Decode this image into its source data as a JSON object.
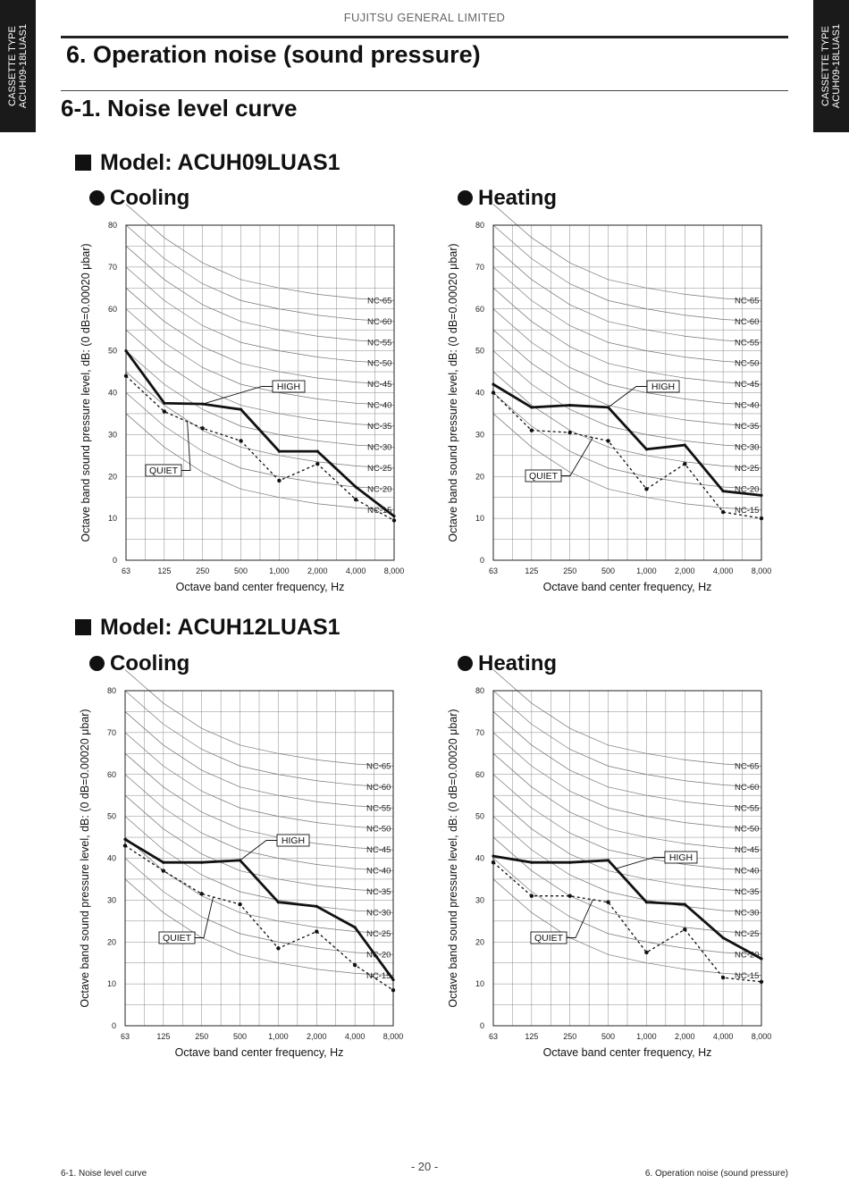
{
  "side_tab": {
    "line1": "CASSETTE TYPE",
    "line2": "ACUH09-18LUAS1"
  },
  "header": {
    "company": "FUJITSU GENERAL LIMITED"
  },
  "title": "6. Operation noise (sound pressure)",
  "subtitle": "6-1. Noise level curve",
  "footer": {
    "left": "6-1. Noise level curve",
    "center": "- 20 -",
    "right": "6. Operation noise (sound pressure)"
  },
  "colors": {
    "high_line": "#111111",
    "quiet_line": "#111111",
    "grid": "#888888",
    "nc_curve": "#777777"
  },
  "models": [
    {
      "label": "Model: ACUH09LUAS1"
    },
    {
      "label": "Model: ACUH12LUAS1"
    }
  ],
  "chart_data": [
    {
      "type": "line",
      "model": "Model: ACUH09LUAS1",
      "mode": "Cooling",
      "xlabel": "Octave band center frequency, Hz",
      "ylabel": "Octave band sound pressure level, dB: (0 dB=0.00020 μbar)",
      "categories": [
        "63",
        "125",
        "250",
        "500",
        "1,000",
        "2,000",
        "4,000",
        "8,000"
      ],
      "ylim": [
        0,
        80
      ],
      "yticks": [
        0,
        10,
        20,
        30,
        40,
        50,
        60,
        70,
        80
      ],
      "nc_labels": [
        "NC-65",
        "NC-60",
        "NC-55",
        "NC-50",
        "NC-45",
        "NC-40",
        "NC-35",
        "NC-30",
        "NC-25",
        "NC-20",
        "NC-15"
      ],
      "series": [
        {
          "name": "HIGH",
          "values": [
            50,
            37.5,
            37.3,
            36,
            26,
            26,
            17.5,
            10.5
          ]
        },
        {
          "name": "QUIET",
          "values": [
            44,
            35.5,
            31.5,
            28.5,
            19,
            23,
            14.5,
            9.5
          ]
        }
      ]
    },
    {
      "type": "line",
      "model": "Model: ACUH09LUAS1",
      "mode": "Heating",
      "xlabel": "Octave band center frequency, Hz",
      "ylabel": "Octave band sound pressure level, dB: (0 dB=0.00020 μbar)",
      "categories": [
        "63",
        "125",
        "250",
        "500",
        "1,000",
        "2,000",
        "4,000",
        "8,000"
      ],
      "ylim": [
        0,
        80
      ],
      "yticks": [
        0,
        10,
        20,
        30,
        40,
        50,
        60,
        70,
        80
      ],
      "nc_labels": [
        "NC-65",
        "NC-60",
        "NC-55",
        "NC-50",
        "NC-45",
        "NC-40",
        "NC-35",
        "NC-30",
        "NC-25",
        "NC-20",
        "NC-15"
      ],
      "series": [
        {
          "name": "HIGH",
          "values": [
            42,
            36.5,
            37,
            36.5,
            26.5,
            27.5,
            16.5,
            15.5
          ]
        },
        {
          "name": "QUIET",
          "values": [
            40,
            31,
            30.5,
            28.5,
            17,
            23,
            11.5,
            10
          ]
        }
      ]
    },
    {
      "type": "line",
      "model": "Model: ACUH12LUAS1",
      "mode": "Cooling",
      "xlabel": "Octave band center frequency, Hz",
      "ylabel": "Octave band sound pressure level, dB: (0 dB=0.00020 μbar)",
      "categories": [
        "63",
        "125",
        "250",
        "500",
        "1,000",
        "2,000",
        "4,000",
        "8,000"
      ],
      "ylim": [
        0,
        80
      ],
      "yticks": [
        0,
        10,
        20,
        30,
        40,
        50,
        60,
        70,
        80
      ],
      "nc_labels": [
        "NC-65",
        "NC-60",
        "NC-55",
        "NC-50",
        "NC-45",
        "NC-40",
        "NC-35",
        "NC-30",
        "NC-25",
        "NC-20",
        "NC-15"
      ],
      "series": [
        {
          "name": "HIGH",
          "values": [
            44.5,
            39,
            39,
            39.5,
            29.5,
            28.5,
            23.5,
            11
          ]
        },
        {
          "name": "QUIET",
          "values": [
            43,
            37,
            31.5,
            29,
            18.5,
            22.5,
            14.5,
            8.5
          ]
        }
      ]
    },
    {
      "type": "line",
      "model": "Model: ACUH12LUAS1",
      "mode": "Heating",
      "xlabel": "Octave band center frequency, Hz",
      "ylabel": "Octave band sound pressure level, dB: (0 dB=0.00020 μbar)",
      "categories": [
        "63",
        "125",
        "250",
        "500",
        "1,000",
        "2,000",
        "4,000",
        "8,000"
      ],
      "ylim": [
        0,
        80
      ],
      "yticks": [
        0,
        10,
        20,
        30,
        40,
        50,
        60,
        70,
        80
      ],
      "nc_labels": [
        "NC-65",
        "NC-60",
        "NC-55",
        "NC-50",
        "NC-45",
        "NC-40",
        "NC-35",
        "NC-30",
        "NC-25",
        "NC-20",
        "NC-15"
      ],
      "series": [
        {
          "name": "HIGH",
          "values": [
            40.5,
            39,
            39,
            39.5,
            29.5,
            29,
            21,
            16
          ]
        },
        {
          "name": "QUIET",
          "values": [
            39,
            31,
            31,
            29.5,
            17.5,
            23,
            11.5,
            10.5
          ]
        }
      ]
    }
  ]
}
